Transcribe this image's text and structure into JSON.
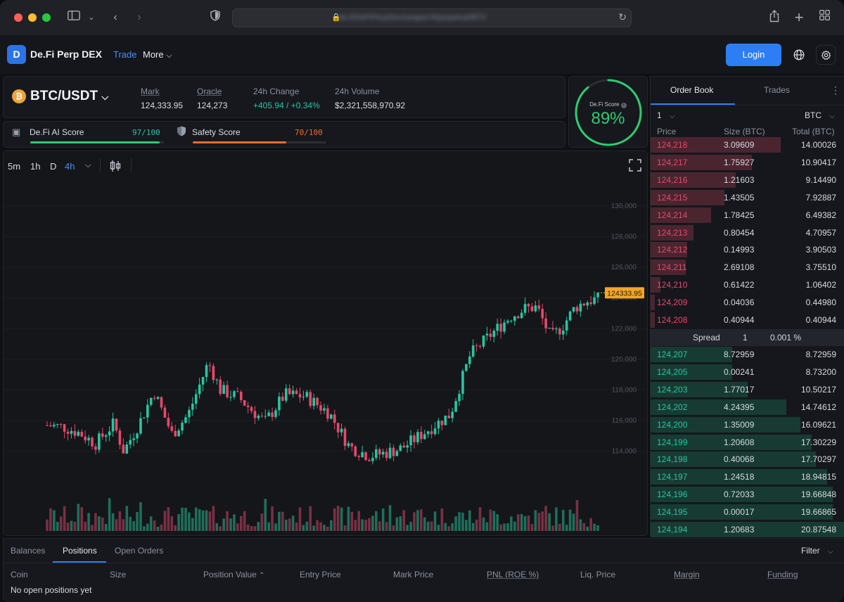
{
  "browser": {
    "url": "de.fi/DeFiPerpDex/swaper/4/perpetual/BTC"
  },
  "header": {
    "brand": "De.Fi Perp DEX",
    "nav_trade": "Trade",
    "nav_more": "More",
    "login": "Login"
  },
  "ticker": {
    "pair": "BTC/USDT",
    "mark_label": "Mark",
    "mark": "124,333.95",
    "oracle_label": "Oracle",
    "oracle": "124,273",
    "change_label": "24h Change",
    "change": "+405.94 / +0.34%",
    "volume_label": "24h Volume",
    "volume": "$2,321,558,970.92"
  },
  "scores": {
    "ai_label": "De.Fi AI Score",
    "ai_value": "97/100",
    "ai_fraction": 0.97,
    "safety_label": "Safety Score",
    "safety_value": "70/100",
    "safety_fraction": 0.7,
    "defi_label": "De.Fi Score",
    "defi_value": "89%",
    "defi_fraction": 0.89
  },
  "chart_toolbar": {
    "tf_5m": "5m",
    "tf_1h": "1h",
    "tf_d": "D",
    "tf_4h": "4h"
  },
  "chart_data": {
    "type": "candlestick",
    "y_ticks": [
      "130,000",
      "128,000",
      "126,000",
      "124,000",
      "122,000",
      "120,000",
      "118,000",
      "116,000",
      "114,000"
    ],
    "ylim": [
      112200,
      131000
    ],
    "last_price_label": "124333.95",
    "last_price": 124333.95
  },
  "orderbook": {
    "tab_book": "Order Book",
    "tab_trades": "Trades",
    "grouping": "1",
    "unit": "BTC",
    "col_price": "Price",
    "col_size": "Size (BTC)",
    "col_total": "Total (BTC)",
    "asks": [
      {
        "price": "124,218",
        "size": "3.09609",
        "total": "14.00026",
        "depth": 0.67
      },
      {
        "price": "124,217",
        "size": "1.75927",
        "total": "10.90417",
        "depth": 0.52
      },
      {
        "price": "124,216",
        "size": "1.21603",
        "total": "9.14490",
        "depth": 0.44
      },
      {
        "price": "124,215",
        "size": "1.43505",
        "total": "7.92887",
        "depth": 0.38
      },
      {
        "price": "124,214",
        "size": "1.78425",
        "total": "6.49382",
        "depth": 0.31
      },
      {
        "price": "124,213",
        "size": "0.80454",
        "total": "4.70957",
        "depth": 0.22
      },
      {
        "price": "124,212",
        "size": "0.14993",
        "total": "3.90503",
        "depth": 0.19
      },
      {
        "price": "124,211",
        "size": "2.69108",
        "total": "3.75510",
        "depth": 0.18
      },
      {
        "price": "124,210",
        "size": "0.61422",
        "total": "1.06402",
        "depth": 0.05
      },
      {
        "price": "124,209",
        "size": "0.04036",
        "total": "0.44980",
        "depth": 0.02
      },
      {
        "price": "124,208",
        "size": "0.40944",
        "total": "0.40944",
        "depth": 0.02
      }
    ],
    "spread_label": "Spread",
    "spread_value": "1",
    "spread_pct": "0.001 %",
    "bids": [
      {
        "price": "124,207",
        "size": "8.72959",
        "total": "8.72959",
        "depth": 0.42
      },
      {
        "price": "124,205",
        "size": "0.00241",
        "total": "8.73200",
        "depth": 0.42
      },
      {
        "price": "124,203",
        "size": "1.77017",
        "total": "10.50217",
        "depth": 0.5
      },
      {
        "price": "124,202",
        "size": "4.24395",
        "total": "14.74612",
        "depth": 0.7
      },
      {
        "price": "124,200",
        "size": "1.35009",
        "total": "16.09621",
        "depth": 0.77
      },
      {
        "price": "124,199",
        "size": "1.20608",
        "total": "17.30229",
        "depth": 0.83
      },
      {
        "price": "124,198",
        "size": "0.40068",
        "total": "17.70297",
        "depth": 0.85
      },
      {
        "price": "124,197",
        "size": "1.24518",
        "total": "18.94815",
        "depth": 0.91
      },
      {
        "price": "124,196",
        "size": "0.72033",
        "total": "19.66848",
        "depth": 0.94
      },
      {
        "price": "124,195",
        "size": "0.00017",
        "total": "19.66865",
        "depth": 0.94
      },
      {
        "price": "124,194",
        "size": "1.20683",
        "total": "20.87548",
        "depth": 1.0
      }
    ]
  },
  "bottom": {
    "tab_balances": "Balances",
    "tab_positions": "Positions",
    "tab_orders": "Open Orders",
    "filter": "Filter",
    "col_coin": "Coin",
    "col_size": "Size",
    "col_value": "Position Value",
    "col_entry": "Entry Price",
    "col_mark": "Mark Price",
    "col_pnl": "PNL (ROE %)",
    "col_liq": "Liq. Price",
    "col_margin": "Margin",
    "col_funding": "Funding",
    "empty": "No open positions yet"
  },
  "colors": {
    "up": "#26c6a1",
    "down": "#e8476b",
    "accent": "#2d7ef5",
    "last_price": "#f5a623"
  }
}
